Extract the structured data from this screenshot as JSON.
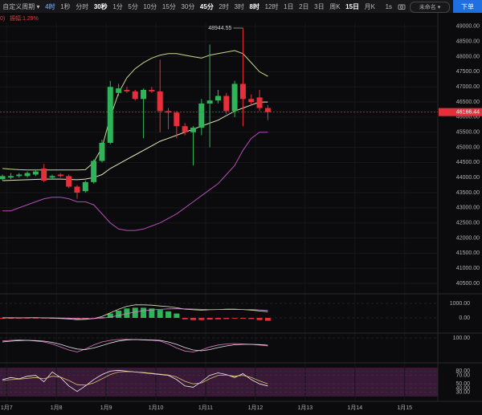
{
  "toolbar": {
    "period_menu": "自定义周期",
    "intervals": [
      "4时",
      "1秒",
      "分时",
      "30秒",
      "1分",
      "5分",
      "10分",
      "15分",
      "30分",
      "45分",
      "2时",
      "3时",
      "8时",
      "12时",
      "1日",
      "2日",
      "3日",
      "周K",
      "15日",
      "月K"
    ],
    "resolution": "1s",
    "layout_name": "未命名",
    "order_button": "下单"
  },
  "chart_data": {
    "type": "candlestick",
    "indicator_prefix": "0)",
    "amplitude": "振幅:1.29%",
    "up_color": "#2fb45a",
    "down_color": "#e5303c",
    "grid": true,
    "xlim": [
      -0.3,
      52.5
    ],
    "xticks": [
      {
        "value": 0.5,
        "label": "1月7"
      },
      {
        "value": 6.5,
        "label": "1月8"
      },
      {
        "value": 12.5,
        "label": "1月9"
      },
      {
        "value": 18.5,
        "label": "1月10"
      },
      {
        "value": 24.5,
        "label": "1月11"
      },
      {
        "value": 30.5,
        "label": "1月12"
      },
      {
        "value": 36.5,
        "label": "1月13"
      },
      {
        "value": 42.5,
        "label": "1月14"
      },
      {
        "value": 48.5,
        "label": "1月15"
      }
    ],
    "ylim": [
      40050,
      49130
    ],
    "yticks": [
      {
        "value": 40500,
        "label": "40500.00"
      },
      {
        "value": 41000,
        "label": "41000.00"
      },
      {
        "value": 41500,
        "label": "41500.00"
      },
      {
        "value": 42000,
        "label": "42000.00"
      },
      {
        "value": 42500,
        "label": "42500.00"
      },
      {
        "value": 43000,
        "label": "43000.00"
      },
      {
        "value": 43500,
        "label": "43500.00"
      },
      {
        "value": 44000,
        "label": "44000.00"
      },
      {
        "value": 44500,
        "label": "44500.00"
      },
      {
        "value": 45000,
        "label": "45000.00"
      },
      {
        "value": 45500,
        "label": "45500.00"
      },
      {
        "value": 46000,
        "label": "46000.00"
      },
      {
        "value": 46500,
        "label": "46500.00"
      },
      {
        "value": 47000,
        "label": "47000.00"
      },
      {
        "value": 47500,
        "label": "47500.00"
      },
      {
        "value": 48000,
        "label": "48000.00"
      },
      {
        "value": 48500,
        "label": "48500.00"
      },
      {
        "value": 49000,
        "label": "49000.00"
      }
    ],
    "open": [
      43950,
      44000,
      44050,
      44050,
      44100,
      44300,
      44000,
      44100,
      44050,
      43700,
      43550,
      43850,
      44550,
      45150,
      46800,
      46900,
      46850,
      46600,
      46900,
      46850,
      46200,
      46150,
      45700,
      45500,
      45650,
      46450,
      46550,
      46700,
      46200,
      47100,
      46600,
      46650,
      46300
    ],
    "high": [
      44100,
      44150,
      44150,
      44200,
      44250,
      44450,
      44100,
      44150,
      44100,
      43750,
      43900,
      44600,
      45250,
      47200,
      47100,
      47000,
      46900,
      46950,
      47000,
      47900,
      46300,
      46200,
      45800,
      45700,
      46600,
      48400,
      46900,
      46800,
      47200,
      48944.55,
      46750,
      46900,
      46400
    ],
    "low": [
      43900,
      43950,
      44000,
      44000,
      44050,
      43850,
      43950,
      44000,
      43650,
      43300,
      43500,
      43800,
      44500,
      45100,
      46700,
      46800,
      46550,
      45300,
      46800,
      45500,
      45600,
      45300,
      45400,
      44400,
      45400,
      45000,
      46450,
      46100,
      46000,
      45700,
      46400,
      46200,
      45900
    ],
    "close": [
      44050,
      44050,
      44100,
      44150,
      44200,
      43900,
      44050,
      44050,
      43700,
      43500,
      43850,
      44550,
      45150,
      47000,
      46950,
      46850,
      46600,
      46900,
      46850,
      46200,
      46150,
      45700,
      45500,
      45650,
      46450,
      46550,
      46700,
      46200,
      47100,
      46600,
      46500,
      46300,
      46166.44
    ],
    "overlays": [
      {
        "color": "#c9d98a",
        "values": [
          44300,
          44280,
          44260,
          44250,
          44250,
          44250,
          44250,
          44250,
          44250,
          44250,
          44260,
          44500,
          45000,
          46000,
          46800,
          47300,
          47600,
          47800,
          47950,
          48050,
          48100,
          48100,
          48050,
          48000,
          47950,
          48050,
          48100,
          48150,
          48200,
          48100,
          47800,
          47500,
          47350
        ]
      },
      {
        "color": "#e4e6b8",
        "values": [
          43900,
          43910,
          43920,
          43930,
          43940,
          43950,
          43950,
          43950,
          43940,
          43930,
          43950,
          44000,
          44100,
          44300,
          44450,
          44600,
          44750,
          44900,
          45050,
          45200,
          45300,
          45400,
          45500,
          45600,
          45700,
          45800,
          45900,
          46050,
          46200,
          46300,
          46400,
          46500,
          46500
        ]
      },
      {
        "color": "#b44db4",
        "values": [
          42900,
          42900,
          43000,
          43100,
          43200,
          43300,
          43350,
          43350,
          43300,
          43200,
          43200,
          43100,
          42800,
          42500,
          42300,
          42250,
          42250,
          42300,
          42400,
          42500,
          42650,
          42800,
          43000,
          43200,
          43400,
          43600,
          43800,
          44100,
          44400,
          44900,
          45300,
          45500,
          45500
        ]
      }
    ],
    "panels": [
      {
        "ylim": [
          -333,
          1333
        ],
        "yticks": [
          {
            "value": 1000,
            "label": "1000.00"
          },
          {
            "value": 0,
            "label": "0.00"
          }
        ],
        "histogram": [
          -50,
          -50,
          -40,
          -30,
          -20,
          -40,
          -50,
          -60,
          -80,
          -100,
          -60,
          -20,
          50,
          300,
          500,
          650,
          700,
          700,
          650,
          550,
          450,
          300,
          -100,
          -150,
          -150,
          -120,
          -100,
          -80,
          -50,
          -60,
          -80,
          -150,
          -200
        ],
        "lines": [
          {
            "color": "#e4e6b8",
            "values": [
              0,
              0,
              0,
              10,
              20,
              0,
              -20,
              -40,
              -80,
              -120,
              -100,
              -50,
              100,
              350,
              600,
              800,
              900,
              900,
              880,
              820,
              780,
              700,
              600,
              560,
              540,
              560,
              580,
              600,
              600,
              580,
              540,
              480,
              430
            ]
          },
          {
            "color": "#c98ad0",
            "values": [
              20,
              15,
              12,
              12,
              14,
              12,
              6,
              -3,
              -18,
              -38,
              -50,
              -50,
              -20,
              55,
              165,
              290,
              410,
              490,
              550,
              590,
              620,
              630,
              620,
              610,
              590,
              580,
              580,
              580,
              580,
              580,
              570,
              550,
              530
            ]
          }
        ]
      },
      {
        "ylim": [
          0,
          100
        ],
        "yticks": [
          {
            "value": 100,
            "label": "100.00"
          }
        ],
        "lines": [
          {
            "color": "#e27bc9",
            "values": [
              85,
              88,
              90,
              88,
              85,
              80,
              70,
              55,
              40,
              30,
              45,
              65,
              80,
              88,
              92,
              93,
              92,
              90,
              88,
              85,
              70,
              50,
              35,
              30,
              40,
              55,
              65,
              70,
              72,
              70,
              68,
              65,
              60
            ]
          },
          {
            "color": "#e8e8e8",
            "values": [
              80,
              84,
              87,
              88,
              87,
              84,
              78,
              68,
              55,
              45,
              42,
              50,
              62,
              75,
              85,
              90,
              92,
              91,
              90,
              88,
              80,
              68,
              52,
              40,
              36,
              42,
              52,
              60,
              66,
              68,
              68,
              67,
              64
            ]
          }
        ]
      },
      {
        "ylim": [
          20,
          88.3
        ],
        "yticks": [
          {
            "value": 80,
            "label": "80.00"
          },
          {
            "value": 70,
            "label": "70.00"
          },
          {
            "value": 50,
            "label": "50.00"
          },
          {
            "value": 40,
            "label": "40.00"
          },
          {
            "value": 30,
            "label": "30.00"
          }
        ],
        "lines": [
          {
            "color": "#f0f0f0",
            "values": [
              60,
              65,
              62,
              68,
              70,
              55,
              78,
              65,
              45,
              32,
              45,
              60,
              72,
              80,
              82,
              80,
              78,
              76,
              74,
              72,
              70,
              60,
              45,
              42,
              55,
              70,
              76,
              72,
              65,
              74,
              60,
              50,
              45
            ]
          },
          {
            "color": "#d9c56a",
            "values": [
              58,
              60,
              61,
              63,
              65,
              62,
              68,
              66,
              58,
              48,
              47,
              52,
              62,
              72,
              78,
              79,
              78,
              77,
              75,
              73,
              71,
              66,
              56,
              50,
              52,
              62,
              70,
              71,
              68,
              70,
              65,
              57,
              50
            ]
          }
        ]
      }
    ]
  }
}
